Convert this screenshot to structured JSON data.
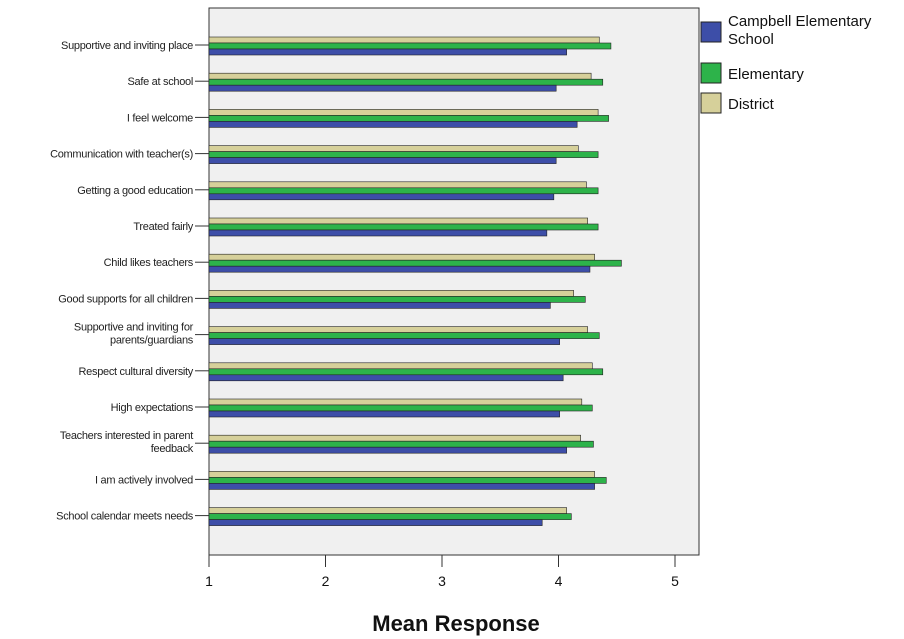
{
  "chart_data": {
    "type": "bar",
    "orientation": "horizontal",
    "title": "",
    "xlabel": "Mean Response",
    "ylabel": "",
    "xlim": [
      1,
      5.2
    ],
    "x_ticks": [
      "1",
      "2",
      "3",
      "4",
      "5"
    ],
    "grid": false,
    "legend_position": "top-right",
    "categories": [
      [
        "Supportive and inviting place"
      ],
      [
        "Safe at school"
      ],
      [
        "I feel welcome"
      ],
      [
        "Communication with teacher(s)"
      ],
      [
        "Getting a good education"
      ],
      [
        "Treated fairly"
      ],
      [
        "Child likes teachers"
      ],
      [
        "Good supports for all children"
      ],
      [
        "Supportive and inviting for",
        "parents/guardians"
      ],
      [
        "Respect cultural diversity"
      ],
      [
        "High expectations"
      ],
      [
        "Teachers interested in parent",
        "feedback"
      ],
      [
        "I am actively involved"
      ],
      [
        "School calendar meets needs"
      ]
    ],
    "series": [
      {
        "name": [
          "District"
        ],
        "color": "#d6d09a",
        "values": [
          4.35,
          4.28,
          4.34,
          4.17,
          4.24,
          4.25,
          4.31,
          4.13,
          4.25,
          4.29,
          4.2,
          4.19,
          4.31,
          4.07
        ]
      },
      {
        "name": [
          "Elementary"
        ],
        "color": "#2db34a",
        "values": [
          4.45,
          4.38,
          4.43,
          4.34,
          4.34,
          4.34,
          4.54,
          4.23,
          4.35,
          4.38,
          4.29,
          4.3,
          4.41,
          4.11
        ]
      },
      {
        "name": [
          "Campbell Elementary",
          "School"
        ],
        "color": "#3d4ea8",
        "values": [
          4.07,
          3.98,
          4.16,
          3.98,
          3.96,
          3.9,
          4.27,
          3.93,
          4.01,
          4.04,
          4.01,
          4.07,
          4.31,
          3.86
        ]
      }
    ],
    "legend_order": [
      2,
      1,
      0
    ]
  }
}
